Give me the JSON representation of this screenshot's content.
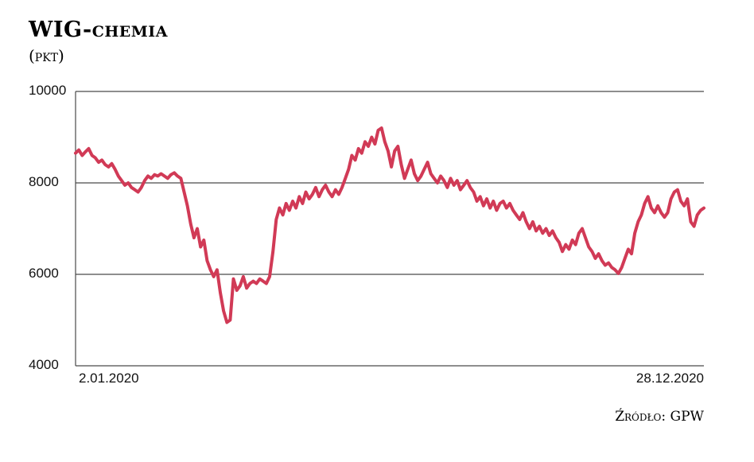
{
  "title": {
    "main": "WIG-",
    "sub": "chemia",
    "unit": "(pkt)"
  },
  "source": "Źródło: GPW",
  "chart_data": {
    "type": "line",
    "title": "WIG-CHEMIA",
    "ylabel": "PKT",
    "ylim": [
      4000,
      10000
    ],
    "yticks": [
      10000,
      8000,
      6000,
      4000
    ],
    "grid": true,
    "legend": "none",
    "x_start_label": "2.01.2020",
    "x_end_label": "28.12.2020",
    "line_color": "#d13a56",
    "values": [
      8650,
      8720,
      8600,
      8680,
      8750,
      8600,
      8550,
      8450,
      8500,
      8400,
      8350,
      8420,
      8300,
      8150,
      8050,
      7950,
      8000,
      7900,
      7850,
      7800,
      7900,
      8050,
      8150,
      8100,
      8180,
      8150,
      8200,
      8150,
      8100,
      8180,
      8220,
      8150,
      8100,
      7800,
      7500,
      7100,
      6800,
      7000,
      6600,
      6750,
      6300,
      6100,
      5950,
      6100,
      5600,
      5200,
      4950,
      5000,
      5900,
      5650,
      5750,
      5950,
      5700,
      5800,
      5850,
      5800,
      5900,
      5850,
      5800,
      5950,
      6500,
      7200,
      7450,
      7300,
      7550,
      7400,
      7600,
      7450,
      7700,
      7550,
      7800,
      7650,
      7750,
      7900,
      7700,
      7850,
      7950,
      7800,
      7700,
      7850,
      7750,
      7900,
      8100,
      8300,
      8600,
      8500,
      8750,
      8650,
      8900,
      8800,
      9000,
      8850,
      9150,
      9200,
      8900,
      8700,
      8350,
      8700,
      8800,
      8400,
      8100,
      8300,
      8500,
      8200,
      8050,
      8150,
      8300,
      8450,
      8200,
      8100,
      8000,
      8150,
      8050,
      7900,
      8100,
      7950,
      8050,
      7850,
      7950,
      8050,
      7900,
      7800,
      7600,
      7700,
      7500,
      7650,
      7450,
      7600,
      7400,
      7550,
      7600,
      7450,
      7550,
      7400,
      7300,
      7200,
      7350,
      7150,
      7000,
      7150,
      6950,
      7050,
      6900,
      7000,
      6850,
      6950,
      6800,
      6700,
      6500,
      6650,
      6550,
      6750,
      6650,
      6900,
      7000,
      6800,
      6600,
      6500,
      6350,
      6450,
      6300,
      6200,
      6250,
      6150,
      6100,
      6020,
      6150,
      6350,
      6550,
      6450,
      6900,
      7150,
      7300,
      7550,
      7700,
      7450,
      7350,
      7500,
      7350,
      7250,
      7350,
      7650,
      7800,
      7850,
      7600,
      7500,
      7650,
      7150,
      7050,
      7300,
      7400,
      7450
    ]
  }
}
